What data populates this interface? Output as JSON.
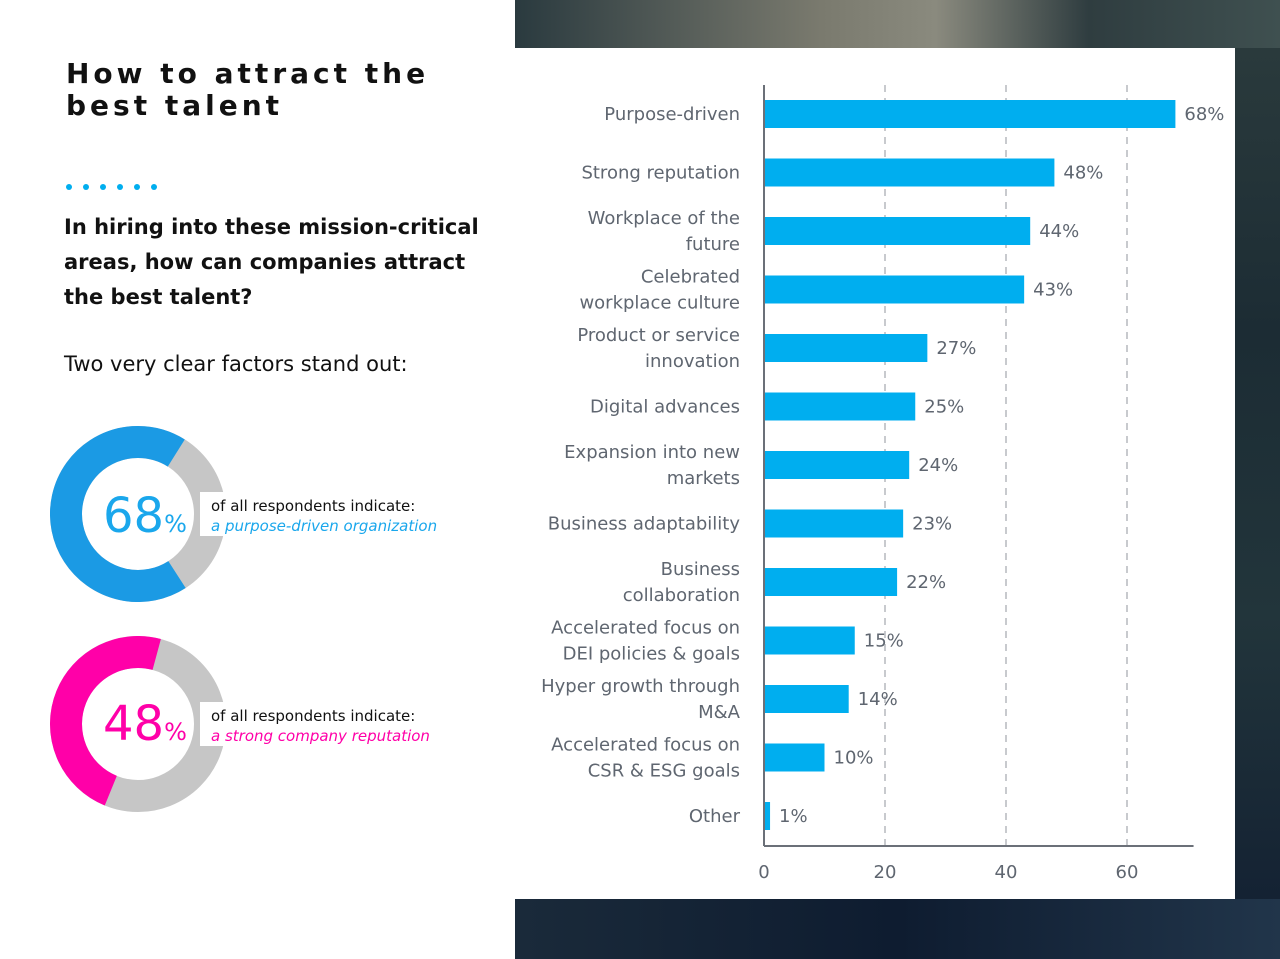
{
  "left": {
    "title_line1": "How to attract the",
    "title_line2": "best talent",
    "question": "In hiring into these mission-critical areas, how can companies attract the best talent?",
    "factors_intro": "Two very clear factors stand out:",
    "stats": [
      {
        "value": "68",
        "unit": "%",
        "fraction": 0.68,
        "line1": "of all respondents indicate:",
        "line2": "a purpose-driven organization",
        "color": "#1b9ae4",
        "text_color": "#1aa7ec"
      },
      {
        "value": "48",
        "unit": "%",
        "fraction": 0.48,
        "line1": "of all respondents indicate:",
        "line2": "a strong company reputation",
        "color": "#ff00a8",
        "text_color": "#ff00a8"
      }
    ],
    "accent_color": "#00aeef",
    "remainder_color": "#c6c6c6"
  },
  "chart_data": {
    "type": "bar",
    "orientation": "horizontal",
    "title": "",
    "xlabel": "",
    "ylabel": "",
    "categories": [
      [
        "Purpose-driven"
      ],
      [
        "Strong reputation"
      ],
      [
        "Workplace of the",
        "future"
      ],
      [
        "Celebrated",
        "workplace culture"
      ],
      [
        "Product or service",
        "innovation"
      ],
      [
        "Digital advances"
      ],
      [
        "Expansion into new",
        "markets"
      ],
      [
        "Business adaptability"
      ],
      [
        "Business",
        "collaboration"
      ],
      [
        "Accelerated focus on",
        "DEI policies & goals"
      ],
      [
        "Hyper growth through",
        "M&A"
      ],
      [
        "Accelerated focus on",
        "CSR & ESG goals"
      ],
      [
        "Other"
      ]
    ],
    "values": [
      68,
      48,
      44,
      43,
      27,
      25,
      24,
      23,
      22,
      15,
      14,
      10,
      1
    ],
    "value_labels": [
      "68%",
      "48%",
      "44%",
      "43%",
      "27%",
      "25%",
      "24%",
      "23%",
      "22%",
      "15%",
      "14%",
      "10%",
      "1%"
    ],
    "xticks": [
      0,
      20,
      40,
      60
    ],
    "xtick_labels": [
      "0",
      "20",
      "40",
      "60"
    ],
    "xlim": [
      0,
      71
    ],
    "grid": "vertical dashed at ticks",
    "bar_color": "#00aeef",
    "legend": "none"
  }
}
